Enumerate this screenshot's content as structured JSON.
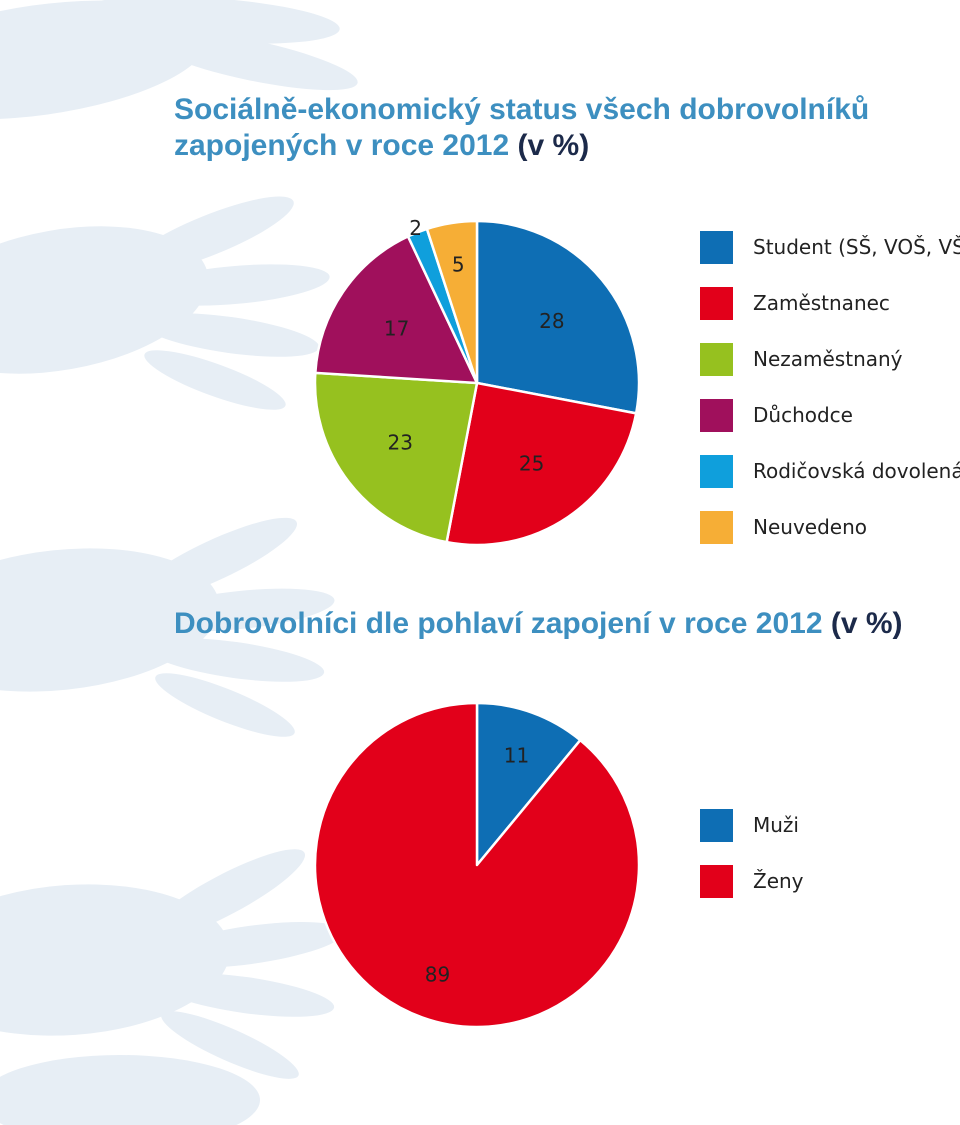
{
  "decoration": {
    "background": "hand-silhouettes",
    "hand_color": "#e7eef5"
  },
  "chart_data": [
    {
      "type": "pie",
      "title": "Sociálně-ekonomický status všech dobrovolníků zapojených v roce 2012",
      "title_main": "Sociálně-ekonomický status všech dobrovolníků zapojených v roce 2012",
      "title_unit": "(v %)",
      "categories": [
        "Student (SŠ, VOŠ, VŠ)",
        "Zaměstnanec",
        "Nezaměstnaný",
        "Důchodce",
        "Rodičovská dovolená",
        "Neuvedeno"
      ],
      "values": [
        28,
        25,
        23,
        17,
        2,
        5
      ],
      "colors": [
        "#0e6eb4",
        "#e2001a",
        "#96c11f",
        "#a0105c",
        "#0f9fdc",
        "#f6ae36"
      ],
      "slice_order": [
        0,
        1,
        2,
        3,
        4,
        5
      ],
      "legend_position": "right"
    },
    {
      "type": "pie",
      "title": "Dobrovolníci dle pohlaví zapojení v roce 2012",
      "title_main": "Dobrovolníci dle pohlaví zapojení v roce 2012",
      "title_unit": "(v %)",
      "categories": [
        "Muži",
        "Ženy"
      ],
      "values": [
        11,
        89
      ],
      "colors": [
        "#0e6eb4",
        "#e2001a"
      ],
      "slice_order": [
        0,
        1
      ],
      "legend_position": "right"
    }
  ]
}
